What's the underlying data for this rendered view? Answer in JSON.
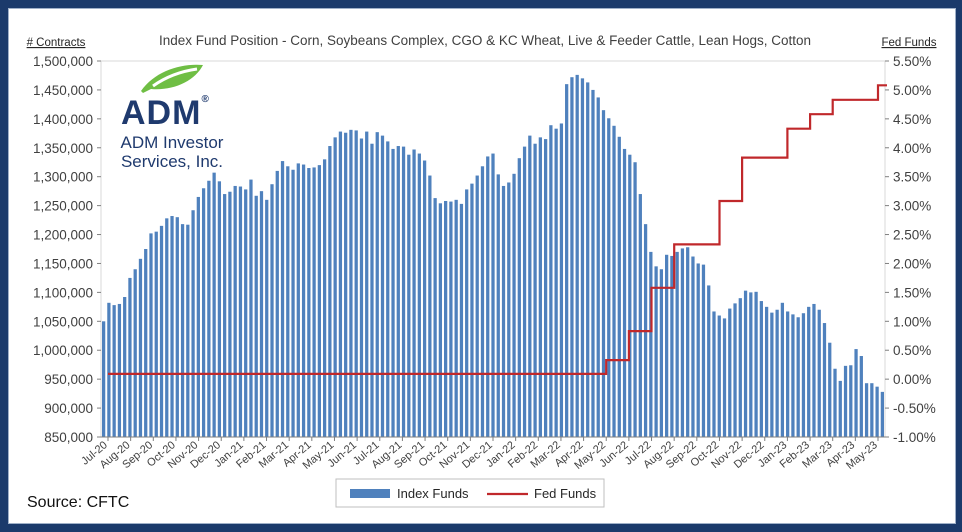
{
  "chart_data": {
    "type": "bar",
    "title": "Index Fund Position - Corn, Soybeans Complex, CGO & KC Wheat, Live & Feeder Cattle, Lean Hogs, Cotton",
    "ylabel": "# Contracts",
    "y2label": "Fed Funds",
    "ylim": [
      850000,
      1500000
    ],
    "y2lim": [
      -1.0,
      5.5
    ],
    "yticks": [
      "850,000",
      "900,000",
      "950,000",
      "1,000,000",
      "1,050,000",
      "1,100,000",
      "1,150,000",
      "1,200,000",
      "1,250,000",
      "1,300,000",
      "1,350,000",
      "1,400,000",
      "1,450,000",
      "1,500,000"
    ],
    "y2ticks": [
      "-1.00%",
      "-0.50%",
      "0.00%",
      "0.50%",
      "1.00%",
      "1.50%",
      "2.00%",
      "2.50%",
      "3.00%",
      "3.50%",
      "4.00%",
      "4.50%",
      "5.00%",
      "5.50%"
    ],
    "xticks": [
      "Jul-20",
      "Aug-20",
      "Sep-20",
      "Oct-20",
      "Nov-20",
      "Dec-20",
      "Jan-21",
      "Feb-21",
      "Mar-21",
      "Apr-21",
      "May-21",
      "Jun-21",
      "Jul-21",
      "Aug-21",
      "Sep-21",
      "Oct-21",
      "Nov-21",
      "Dec-21",
      "Jan-22",
      "Feb-22",
      "Mar-22",
      "Apr-22",
      "May-22",
      "Jun-22",
      "Jul-22",
      "Aug-22",
      "Sep-22",
      "Oct-22",
      "Nov-22",
      "Dec-22",
      "Jan-23",
      "Feb-23",
      "Mar-23",
      "Apr-23",
      "May-23"
    ],
    "legend_position": "bottom",
    "grid": false,
    "series": [
      {
        "name": "Index Funds",
        "kind": "bar",
        "axis": "left",
        "color": "#4f81bd",
        "values": [
          1050000,
          1082000,
          1078000,
          1080000,
          1092000,
          1125000,
          1140000,
          1158000,
          1175000,
          1202000,
          1205000,
          1215000,
          1228000,
          1232000,
          1230000,
          1218000,
          1217000,
          1242000,
          1265000,
          1280000,
          1293000,
          1307000,
          1292000,
          1270000,
          1274000,
          1284000,
          1283000,
          1278000,
          1295000,
          1267000,
          1275000,
          1260000,
          1287000,
          1310000,
          1327000,
          1318000,
          1312000,
          1323000,
          1321000,
          1315000,
          1316000,
          1320000,
          1330000,
          1353000,
          1368000,
          1378000,
          1376000,
          1381000,
          1380000,
          1366000,
          1378000,
          1357000,
          1377000,
          1371000,
          1361000,
          1348000,
          1353000,
          1352000,
          1338000,
          1347000,
          1340000,
          1328000,
          1302000,
          1263000,
          1254000,
          1258000,
          1257000,
          1260000,
          1253000,
          1278000,
          1288000,
          1302000,
          1318000,
          1335000,
          1340000,
          1304000,
          1284000,
          1290000,
          1305000,
          1332000,
          1352000,
          1371000,
          1357000,
          1368000,
          1365000,
          1389000,
          1383000,
          1392000,
          1460000,
          1472000,
          1476000,
          1470000,
          1463000,
          1450000,
          1437000,
          1415000,
          1401000,
          1388000,
          1369000,
          1348000,
          1338000,
          1325000,
          1270000,
          1218000,
          1170000,
          1145000,
          1140000,
          1165000,
          1163000,
          1170000,
          1176000,
          1178000,
          1162000,
          1150000,
          1148000,
          1112000,
          1067000,
          1060000,
          1055000,
          1072000,
          1081000,
          1090000,
          1103000,
          1100000,
          1101000,
          1085000,
          1075000,
          1065000,
          1070000,
          1082000,
          1067000,
          1062000,
          1057000,
          1064000,
          1075000,
          1080000,
          1070000,
          1047000,
          1013000,
          968000,
          947000,
          973000,
          974000,
          1002000,
          990000,
          943000,
          943000,
          937000,
          928000
        ]
      },
      {
        "name": "Fed Funds",
        "kind": "step",
        "axis": "right",
        "color": "#c0282b",
        "x": [
          "Jul-20",
          "Mar-22",
          "May-22",
          "Jun-22",
          "Jul-22",
          "Aug-22",
          "Sep-22",
          "Oct-22",
          "Nov-22",
          "Dec-22",
          "Jan-23",
          "Feb-23",
          "Mar-23",
          "Apr-23",
          "May-23"
        ],
        "values": [
          0.09,
          0.09,
          0.33,
          0.83,
          1.58,
          2.33,
          2.33,
          3.08,
          3.83,
          3.83,
          4.33,
          4.58,
          4.83,
          4.83,
          5.08
        ]
      }
    ]
  },
  "source_label": "Source: CFTC",
  "logo": {
    "brand": "ADM",
    "subtitle_line1": "ADM Investor",
    "subtitle_line2": "Services, Inc."
  }
}
